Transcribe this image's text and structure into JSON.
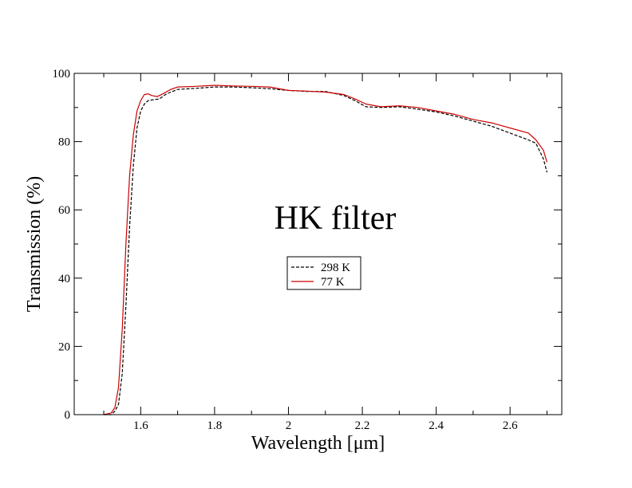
{
  "chart_data": {
    "type": "line",
    "title": "HK filter",
    "xlabel": "Wavelength [μm]",
    "ylabel": "Transmission (%)",
    "xlim": [
      1.42,
      2.74
    ],
    "ylim": [
      0,
      100
    ],
    "x_ticks": [
      1.6,
      1.8,
      2.0,
      2.2,
      2.4,
      2.6
    ],
    "x_tick_labels": [
      "1.6",
      "1.8",
      "2",
      "2.2",
      "2.4",
      "2.6"
    ],
    "y_ticks": [
      0,
      20,
      40,
      60,
      80,
      100
    ],
    "y_tick_labels": [
      "0",
      "20",
      "40",
      "60",
      "80",
      "100"
    ],
    "grid": false,
    "legend_position": "center",
    "series": [
      {
        "name": "298 K",
        "color": "#000000",
        "dash": "dashed",
        "x": [
          1.5,
          1.52,
          1.53,
          1.54,
          1.55,
          1.56,
          1.57,
          1.58,
          1.59,
          1.6,
          1.61,
          1.62,
          1.63,
          1.65,
          1.67,
          1.7,
          1.75,
          1.8,
          1.85,
          1.9,
          1.95,
          2.0,
          2.05,
          2.1,
          2.15,
          2.18,
          2.21,
          2.25,
          2.3,
          2.35,
          2.4,
          2.45,
          2.5,
          2.55,
          2.6,
          2.65,
          2.67,
          2.69,
          2.7
        ],
        "y": [
          0,
          0,
          1,
          3,
          12,
          32,
          55,
          73,
          84,
          89,
          91,
          92,
          92.2,
          92.5,
          94,
          95.3,
          95.6,
          96,
          96,
          95.8,
          95.5,
          95,
          94.7,
          94.7,
          93.5,
          92,
          90.2,
          90,
          90.2,
          89.5,
          88.7,
          87.5,
          86,
          84.5,
          82.5,
          80.5,
          79.5,
          75,
          71
        ]
      },
      {
        "name": "77 K",
        "color": "#cc0000",
        "dash": "solid",
        "x": [
          1.5,
          1.52,
          1.53,
          1.54,
          1.55,
          1.56,
          1.57,
          1.58,
          1.59,
          1.6,
          1.61,
          1.62,
          1.63,
          1.645,
          1.66,
          1.68,
          1.7,
          1.75,
          1.8,
          1.85,
          1.9,
          1.95,
          2.0,
          2.05,
          2.1,
          2.15,
          2.18,
          2.21,
          2.25,
          2.3,
          2.35,
          2.4,
          2.45,
          2.5,
          2.55,
          2.6,
          2.65,
          2.67,
          2.69,
          2.7
        ],
        "y": [
          0,
          0.5,
          2,
          8,
          25,
          50,
          70,
          82,
          89,
          92,
          93.8,
          94,
          93.5,
          93.2,
          94,
          95.2,
          96,
          96.2,
          96.5,
          96.3,
          96.2,
          96,
          95,
          94.8,
          94.5,
          93.8,
          92.5,
          91,
          90.2,
          90.5,
          90,
          89,
          88,
          86.5,
          85.5,
          84,
          82.5,
          80.5,
          77.5,
          74
        ]
      }
    ]
  }
}
